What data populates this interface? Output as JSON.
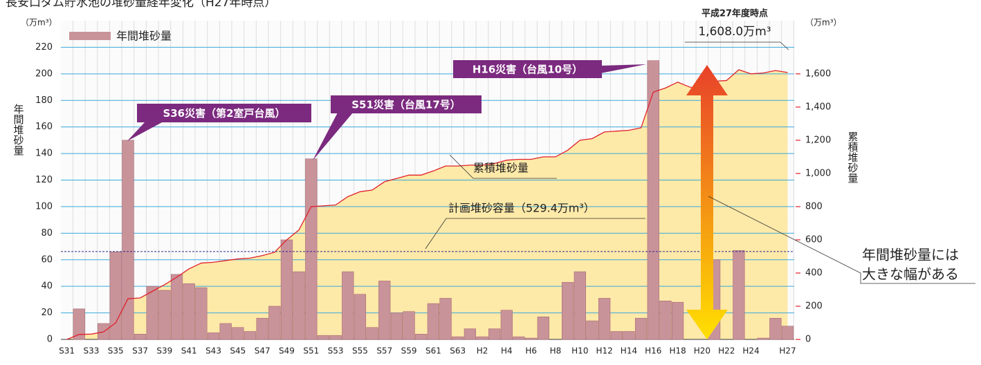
{
  "chart_data": {
    "type": "bar",
    "title": "長安口ダム貯水池の堆砂量経年変化（H27年時点）",
    "y_label": "年間堆砂量",
    "y2_label": "累積堆砂量",
    "y_unit": "（万m³）",
    "y2_unit": "（万m³）",
    "categories": [
      "S31",
      null,
      "S33",
      null,
      "S35",
      null,
      "S37",
      null,
      "S39",
      null,
      "S41",
      null,
      "S43",
      null,
      "S45",
      null,
      "S47",
      null,
      "S49",
      null,
      "S51",
      null,
      "S53",
      null,
      "S55",
      null,
      "S57",
      null,
      "S59",
      null,
      "S61",
      null,
      "S63",
      null,
      "H2",
      null,
      "H4",
      null,
      "H6",
      null,
      "H8",
      null,
      "H10",
      null,
      "H12",
      null,
      "H14",
      null,
      "H16",
      null,
      "H18",
      null,
      "H20",
      null,
      "H22",
      null,
      "H24",
      null,
      null,
      "H27"
    ],
    "series": [
      {
        "name": "年間堆砂量",
        "type": "bar",
        "color": "#c9939a",
        "values": [
          0,
          23,
          0,
          12,
          66,
          150,
          4,
          40,
          37,
          49,
          42,
          39,
          5,
          12,
          9,
          6,
          16,
          25,
          75,
          51,
          136,
          3,
          3,
          51,
          34,
          9,
          44,
          20,
          21,
          4,
          27,
          31,
          2,
          8,
          2,
          8,
          22,
          2,
          1,
          17,
          0,
          43,
          51,
          14,
          31,
          6,
          6,
          16,
          210,
          29,
          28,
          0,
          0,
          60,
          0,
          67,
          0,
          1,
          16,
          10
        ]
      },
      {
        "name": "累積堆砂量",
        "type": "area",
        "axis": "y2",
        "color": "#e0202a",
        "fill_color": "#fde9a8",
        "values": [
          0,
          30,
          32,
          45,
          100,
          245,
          250,
          290,
          330,
          375,
          425,
          460,
          465,
          475,
          485,
          490,
          505,
          525,
          600,
          660,
          800,
          805,
          810,
          860,
          890,
          900,
          950,
          970,
          990,
          990,
          1015,
          1045,
          1045,
          1050,
          1050,
          1060,
          1080,
          1085,
          1085,
          1100,
          1100,
          1140,
          1200,
          1210,
          1250,
          1255,
          1260,
          1275,
          1490,
          1515,
          1550,
          1520,
          1505,
          1555,
          1560,
          1625,
          1600,
          1605,
          1620,
          1608
        ]
      }
    ],
    "ylim": [
      0,
      240
    ],
    "yticks": [
      0,
      20,
      40,
      60,
      80,
      100,
      120,
      140,
      160,
      180,
      200,
      220
    ],
    "y2lim": [
      0,
      1920
    ],
    "y2ticks": [
      0,
      200,
      400,
      600,
      800,
      {
        "value": 1000,
        "label": "1,000"
      },
      {
        "value": 1200,
        "label": "1,200"
      },
      {
        "value": 1400,
        "label": "1,400"
      },
      {
        "value": 1600,
        "label": "1,600"
      }
    ],
    "grid": true,
    "legend": "top-left",
    "reference_lines": [
      {
        "label": "計画堆砂容量（529.4万m³）",
        "value": 529.4,
        "axis": "y2"
      }
    ],
    "callouts": [
      {
        "text": "S36災害（第2室戸台風）",
        "category_index": 5
      },
      {
        "text": "S51災害（台風17号）",
        "category_index": 20
      },
      {
        "text": "H16災害（台風10号）",
        "category_index": 48
      }
    ],
    "annotations": [
      "平成27年度時点",
      "1,608.0万m³",
      "年間堆砂量には",
      "大きな幅がある"
    ]
  }
}
